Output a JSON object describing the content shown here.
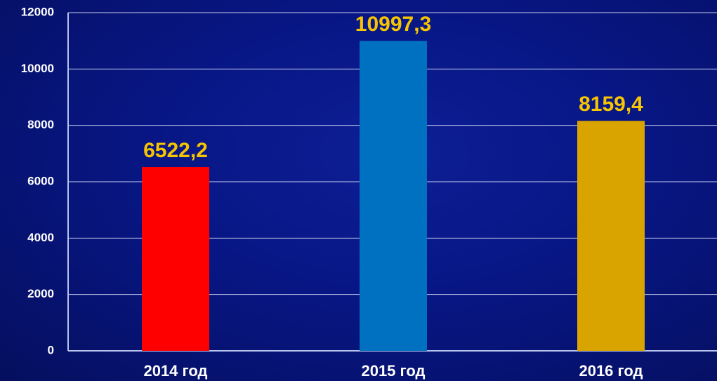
{
  "chart_data": {
    "type": "bar",
    "categories": [
      "2014 год",
      "2015 год",
      "2016 год"
    ],
    "values": [
      6522.2,
      10997.3,
      8159.4
    ],
    "value_labels": [
      "6522,2",
      "10997,3",
      "8159,4"
    ],
    "colors": [
      "#ff0000",
      "#0070c0",
      "#d9a400"
    ],
    "ylim": [
      0,
      12000
    ],
    "yticks": [
      0,
      2000,
      4000,
      6000,
      8000,
      10000,
      12000
    ],
    "grid": true
  }
}
